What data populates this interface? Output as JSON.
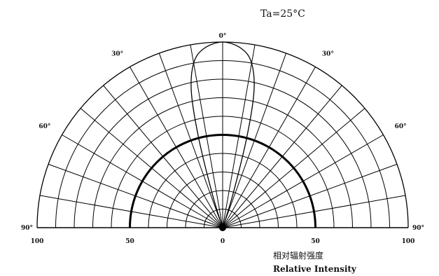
{
  "chart_data": {
    "type": "polar",
    "title": "",
    "condition": "Ta=25°C",
    "angle_range_deg": [
      -90,
      90
    ],
    "radial_range": [
      0,
      100
    ],
    "radial_grid_step": 10,
    "angular_grid_step_deg": 10,
    "reference_ring": 50,
    "grid": true,
    "angle_labels": [
      {
        "angle": -90,
        "text": "90°"
      },
      {
        "angle": -60,
        "text": "60°"
      },
      {
        "angle": -30,
        "text": "30°"
      },
      {
        "angle": 0,
        "text": "0°"
      },
      {
        "angle": 30,
        "text": "30°"
      },
      {
        "angle": 60,
        "text": "60°"
      },
      {
        "angle": 90,
        "text": "90°"
      }
    ],
    "radial_tick_labels": [
      {
        "side": -1,
        "value": 100,
        "text": "100"
      },
      {
        "side": -1,
        "value": 50,
        "text": "50"
      },
      {
        "side": 0,
        "value": 0,
        "text": "0"
      },
      {
        "side": 1,
        "value": 50,
        "text": "50"
      },
      {
        "side": 1,
        "value": 100,
        "text": "100"
      }
    ],
    "series": [
      {
        "points": [
          {
            "angle": -90,
            "r": 0
          },
          {
            "angle": -20,
            "r": 2
          },
          {
            "angle": -17,
            "r": 20
          },
          {
            "angle": -15,
            "r": 50
          },
          {
            "angle": -13,
            "r": 75
          },
          {
            "angle": -10,
            "r": 90
          },
          {
            "angle": -6,
            "r": 97
          },
          {
            "angle": 0,
            "r": 100
          },
          {
            "angle": 6,
            "r": 97
          },
          {
            "angle": 10,
            "r": 90
          },
          {
            "angle": 13,
            "r": 75
          },
          {
            "angle": 15,
            "r": 50
          },
          {
            "angle": 17,
            "r": 20
          },
          {
            "angle": 20,
            "r": 2
          },
          {
            "angle": 90,
            "r": 0
          }
        ]
      }
    ],
    "xlabel": "相对辐射强度",
    "xlabel_en": "Relative Intensity"
  }
}
